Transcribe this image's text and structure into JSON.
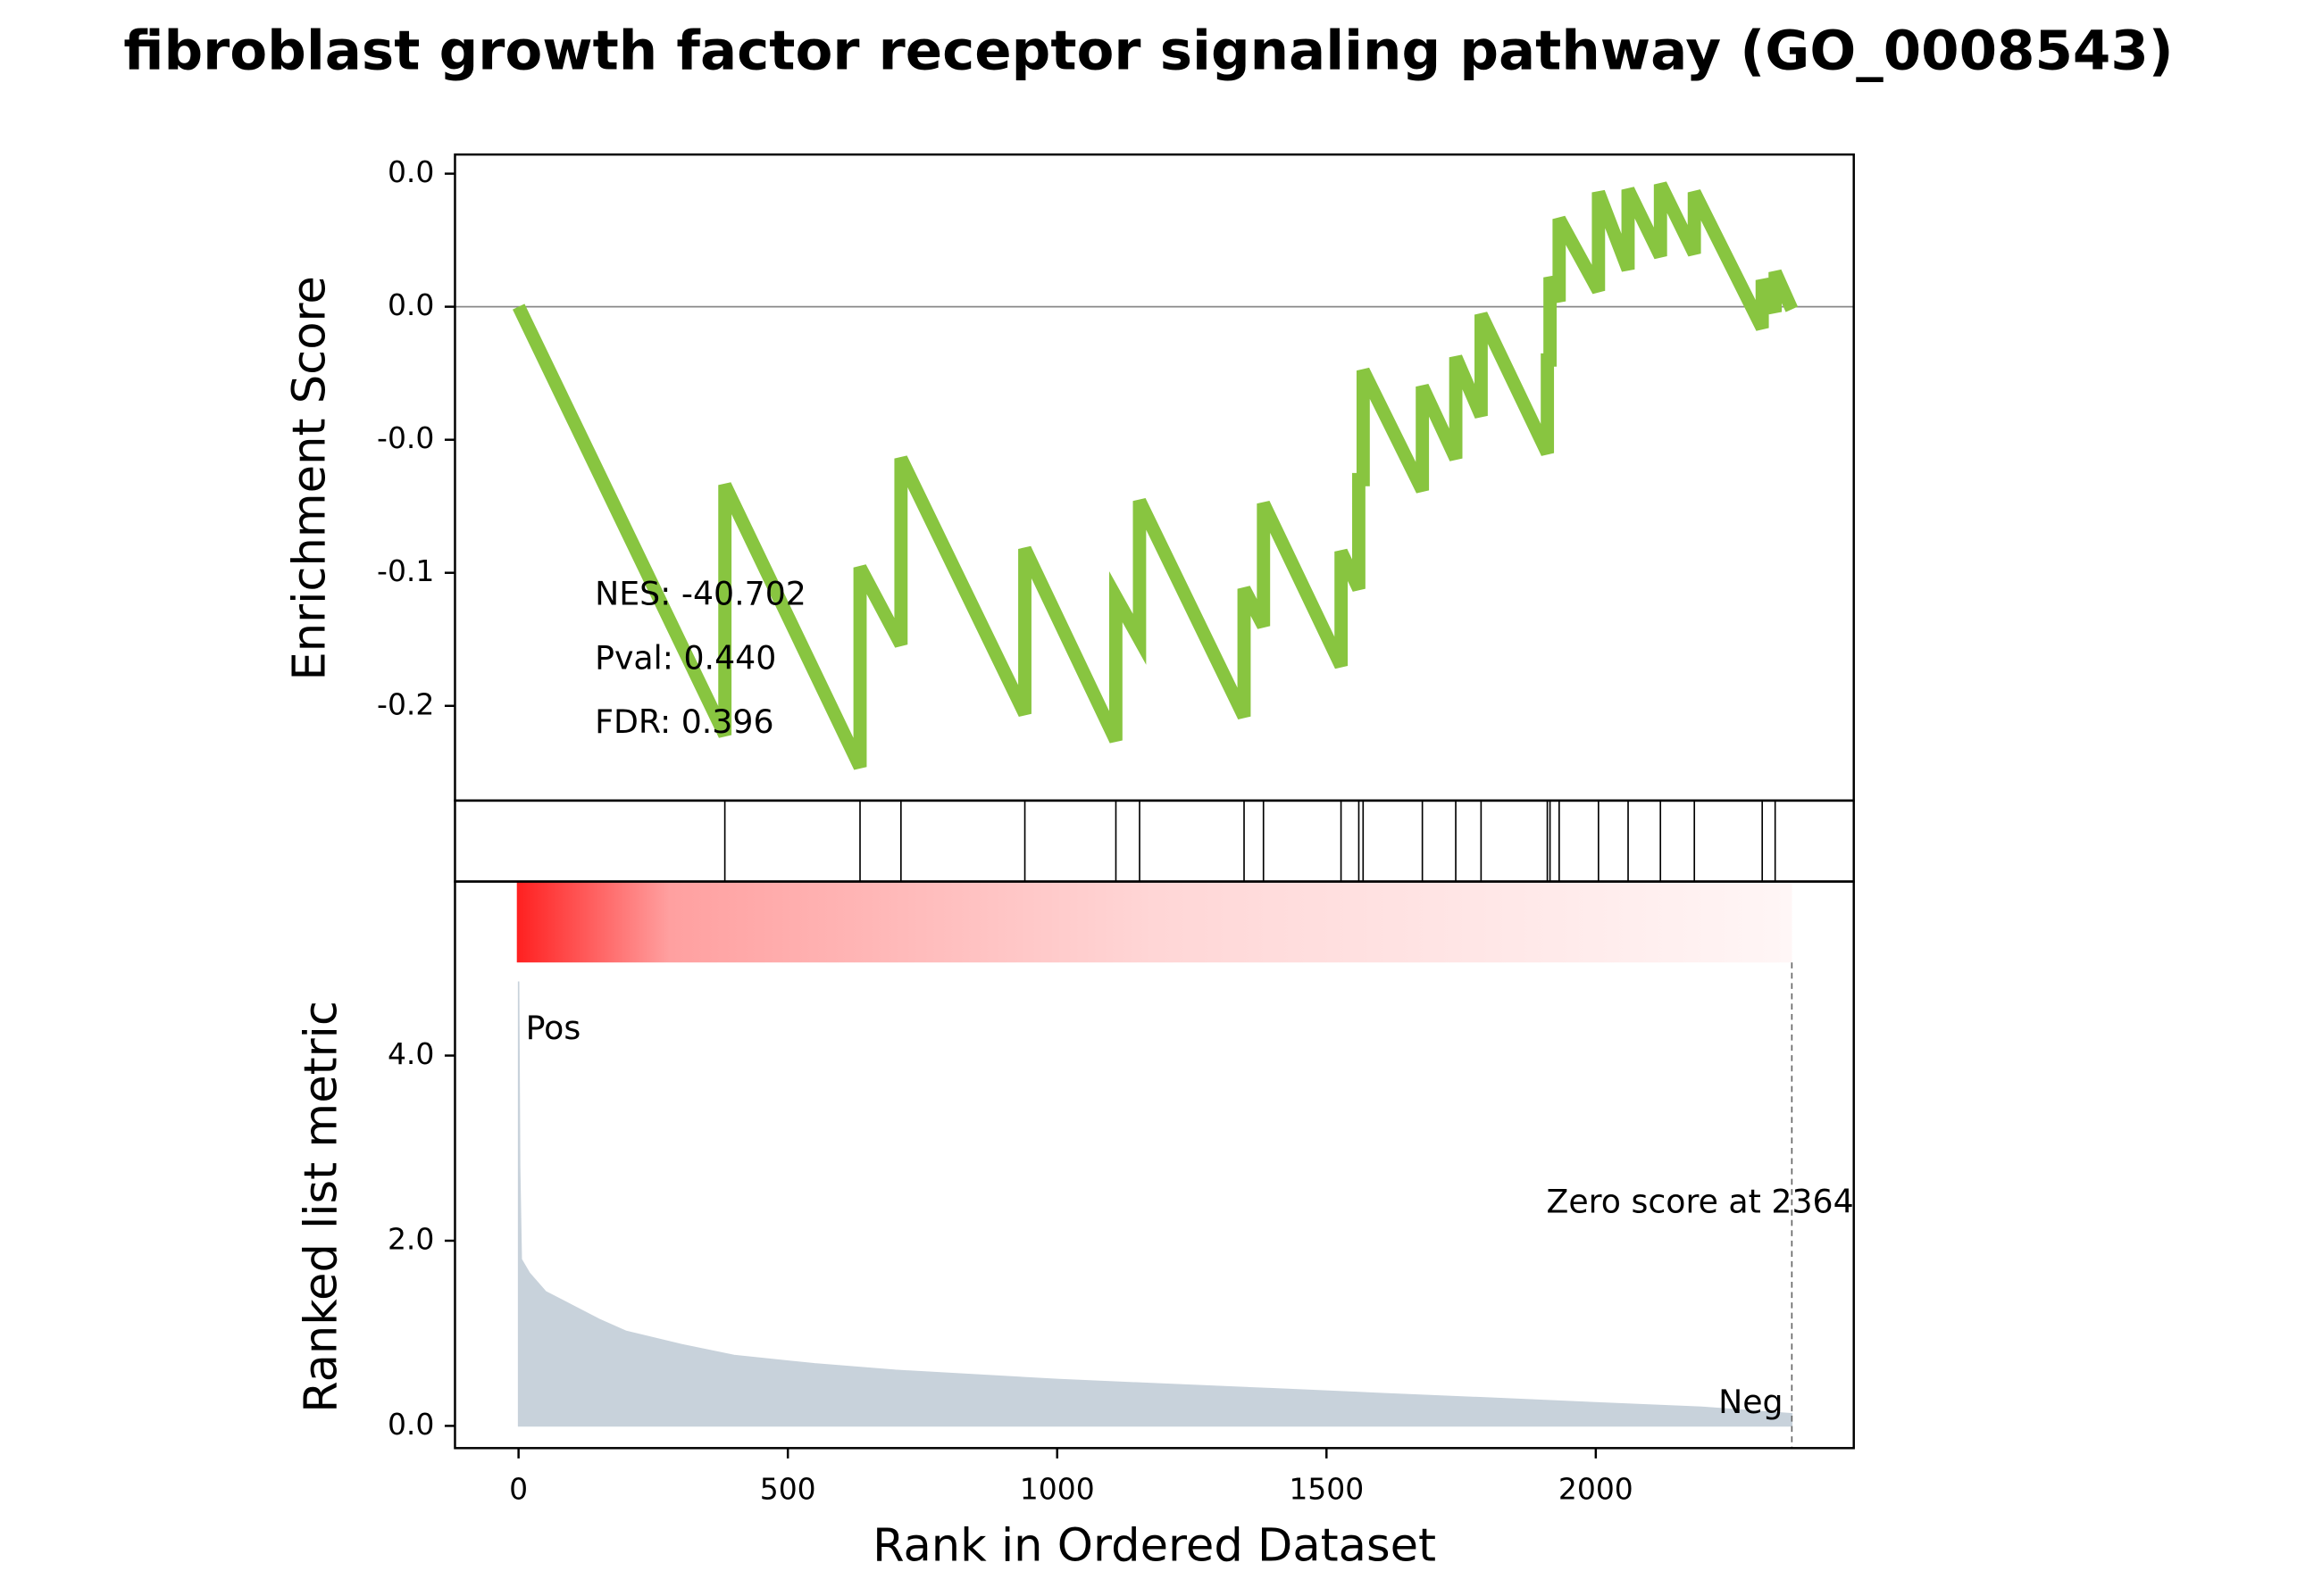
{
  "chart_data": [
    {
      "type": "line",
      "title": "fibroblast growth factor receptor signaling pathway (GO_0008543)",
      "ylabel": "Enrichment Score",
      "annotations": [
        "NES: -40.702",
        "Pval: 0.440",
        "FDR: 0.396"
      ],
      "xlim": [
        -118,
        2479
      ],
      "ylim": [
        -0.1856,
        0.0572
      ],
      "yticks": [
        {
          "value": 0.05,
          "label": "0.0"
        },
        {
          "value": 0,
          "label": "0.0"
        },
        {
          "value": -0.05,
          "label": "-0.0"
        },
        {
          "value": -0.1,
          "label": "-0.1"
        },
        {
          "value": -0.15,
          "label": "-0.2"
        }
      ],
      "x": [
        0,
        383,
        383,
        634,
        634,
        710,
        710,
        940,
        940,
        1109,
        1109,
        1153,
        1153,
        1347,
        1347,
        1383,
        1383,
        1527,
        1527,
        1560,
        1560,
        1568,
        1568,
        1678,
        1678,
        1740,
        1740,
        1787,
        1787,
        1910,
        1910,
        1915,
        1915,
        1932,
        1932,
        2005,
        2005,
        2060,
        2060,
        2120,
        2120,
        2183,
        2183,
        2309,
        2309,
        2333,
        2333,
        2364
      ],
      "series": [
        {
          "color": "#88c540",
          "values": [
            0,
            -0.161,
            -0.067,
            -0.173,
            -0.098,
            -0.127,
            -0.057,
            -0.153,
            -0.091,
            -0.163,
            -0.109,
            -0.125,
            -0.073,
            -0.154,
            -0.106,
            -0.12,
            -0.074,
            -0.135,
            -0.092,
            -0.106,
            -0.065,
            -0.065,
            -0.024,
            -0.069,
            -0.03,
            -0.057,
            -0.019,
            -0.041,
            -0.003,
            -0.055,
            -0.02,
            -0.02,
            0.011,
            0.002,
            0.033,
            0.006,
            0.043,
            0.014,
            0.044,
            0.019,
            0.046,
            0.02,
            0.043,
            -0.008,
            0.01,
            -0.002,
            0.013,
            -0.001
          ]
        }
      ],
      "hits": [
        383,
        634,
        710,
        940,
        1109,
        1153,
        1347,
        1383,
        1527,
        1560,
        1568,
        1678,
        1740,
        1787,
        1910,
        1915,
        1932,
        2005,
        2060,
        2120,
        2183,
        2309,
        2333
      ]
    },
    {
      "type": "area",
      "ylabel": "Ranked list metric",
      "xlabel": "Rank in Ordered Dataset",
      "color": "#c8d2db",
      "xlim": [
        -118,
        2479
      ],
      "xticks": [
        0,
        500,
        1000,
        1500,
        2000
      ],
      "ylim": [
        -0.24,
        5.88
      ],
      "yticks": [
        {
          "value": 0,
          "label": "0.0"
        },
        {
          "value": 2,
          "label": "2.0"
        },
        {
          "value": 4,
          "label": "4.0"
        }
      ],
      "x": [
        0,
        2,
        5,
        20,
        50,
        100,
        150,
        200,
        300,
        400,
        550,
        700,
        850,
        1000,
        1200,
        1400,
        1600,
        1800,
        2000,
        2200,
        2364
      ],
      "values": [
        4.8,
        2.8,
        1.8,
        1.65,
        1.45,
        1.3,
        1.15,
        1.02,
        0.88,
        0.76,
        0.67,
        0.6,
        0.55,
        0.5,
        0.45,
        0.4,
        0.35,
        0.3,
        0.25,
        0.2,
        0.13
      ],
      "pos_label": "Pos",
      "neg_label": "Neg",
      "zero_rank": 2364,
      "zero_label": "Zero score at 2364"
    }
  ]
}
